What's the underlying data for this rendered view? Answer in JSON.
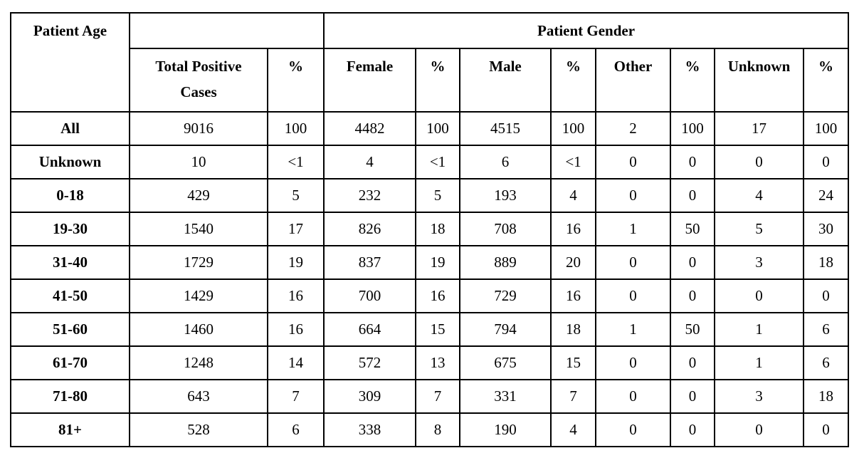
{
  "table": {
    "header": {
      "age": "Patient Age",
      "gender": "Patient Gender",
      "columns": [
        "Total Positive Cases",
        "%",
        "Female",
        "%",
        "Male",
        "%",
        "Other",
        "%",
        "Unknown",
        "%"
      ]
    },
    "rows": [
      [
        "All",
        9016,
        100,
        4482,
        100,
        4515,
        100,
        2,
        100,
        17,
        100
      ],
      [
        "Unknown",
        10,
        "<1",
        4,
        "<1",
        6,
        "<1",
        0,
        0,
        0,
        0
      ],
      [
        "0-18",
        429,
        5,
        232,
        5,
        193,
        4,
        0,
        0,
        4,
        24
      ],
      [
        "19-30",
        1540,
        17,
        826,
        18,
        708,
        16,
        1,
        50,
        5,
        30
      ],
      [
        "31-40",
        1729,
        19,
        837,
        19,
        889,
        20,
        0,
        0,
        3,
        18
      ],
      [
        "41-50",
        1429,
        16,
        700,
        16,
        729,
        16,
        0,
        0,
        0,
        0
      ],
      [
        "51-60",
        1460,
        16,
        664,
        15,
        794,
        18,
        1,
        50,
        1,
        6
      ],
      [
        "61-70",
        1248,
        14,
        572,
        13,
        675,
        15,
        0,
        0,
        1,
        6
      ],
      [
        "71-80",
        643,
        7,
        309,
        7,
        331,
        7,
        0,
        0,
        3,
        18
      ],
      [
        "81+",
        528,
        6,
        338,
        8,
        190,
        4,
        0,
        0,
        0,
        0
      ]
    ]
  }
}
